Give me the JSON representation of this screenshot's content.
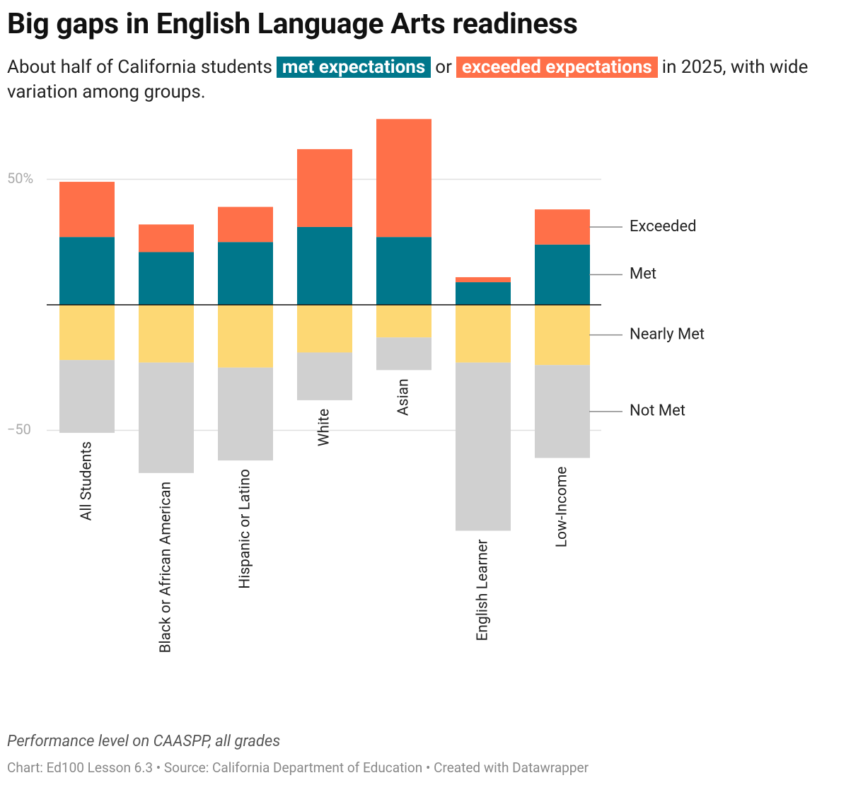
{
  "chart_data": {
    "type": "diverging_stacked_bar",
    "title": "Big gaps in English Language Arts readiness",
    "subtitle": {
      "before": "About half of California students",
      "met": "met expectations",
      "middle": "or",
      "exceeded": "exceeded expectations",
      "after": "in 2025, with wide variation among groups."
    },
    "categories": [
      "All Students",
      "Black or African American",
      "Hispanic or Latino",
      "White",
      "Asian",
      "English Learner",
      "Low-Income"
    ],
    "series": [
      {
        "name": "Met",
        "color": "#00778b",
        "values": [
          27,
          21,
          25,
          31,
          27,
          9,
          24
        ]
      },
      {
        "name": "Exceeded",
        "color": "#ff7049",
        "values": [
          22,
          11,
          14,
          31,
          47,
          2,
          14
        ]
      },
      {
        "name": "Nearly Met",
        "color": "#fdd874",
        "values": [
          -22,
          -23,
          -25,
          -19,
          -13,
          -23,
          -24
        ]
      },
      {
        "name": "Not Met",
        "color": "#d0d0d0",
        "values": [
          -29,
          -44,
          -37,
          -19,
          -13,
          -67,
          -37
        ]
      }
    ],
    "ylim": [
      -90,
      75
    ],
    "yticks": [
      {
        "value": 50,
        "label": "50%"
      },
      {
        "value": -50,
        "label": "−50"
      }
    ],
    "grid": true,
    "notes": "Performance level on CAASPP, all grades",
    "source": "Chart: Ed100 Lesson 6.3 • Source: California Department of Education • Created with Datawrapper"
  }
}
